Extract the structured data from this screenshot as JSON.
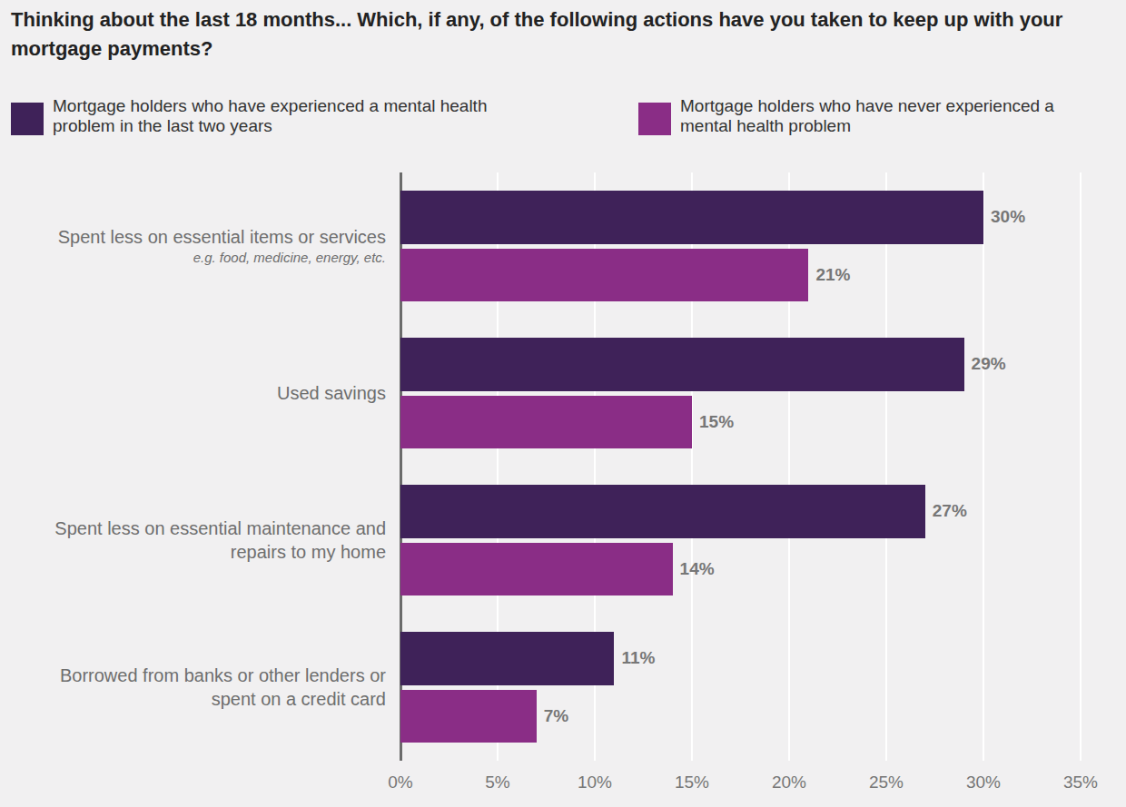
{
  "chart_data": {
    "type": "bar",
    "orientation": "horizontal",
    "title": "Thinking about the last 18 months... Which, if any, of the following actions have you taken to keep up with your mortgage payments?",
    "categories": [
      "Spent less on essential items or services",
      "Used savings",
      "Spent less on essential maintenance and repairs to my home",
      "Borrowed from banks or other lenders or spent on a credit card"
    ],
    "category_notes": [
      "e.g. food, medicine, energy, etc.",
      null,
      null,
      null
    ],
    "series": [
      {
        "name": "Mortgage holders who have experienced a mental health problem in the last two years",
        "color": "#3f2259",
        "values": [
          30,
          29,
          27,
          11
        ],
        "value_labels": [
          "30%",
          "29%",
          "27%",
          "11%"
        ]
      },
      {
        "name": "Mortgage holders who have never experienced a mental health problem",
        "color": "#8a2d86",
        "values": [
          21,
          15,
          14,
          7
        ],
        "value_labels": [
          "21%",
          "15%",
          "14%",
          "7%"
        ]
      }
    ],
    "xlim": [
      0,
      35
    ],
    "xticks": [
      {
        "value": 0,
        "label": "0%"
      },
      {
        "value": 5,
        "label": "5%"
      },
      {
        "value": 10,
        "label": "10%"
      },
      {
        "value": 15,
        "label": "15%"
      },
      {
        "value": 20,
        "label": "20%"
      },
      {
        "value": 25,
        "label": "25%"
      },
      {
        "value": 30,
        "label": "30%"
      },
      {
        "value": 35,
        "label": "35%"
      }
    ],
    "grid": true,
    "data_labels": true,
    "legend": "top"
  }
}
